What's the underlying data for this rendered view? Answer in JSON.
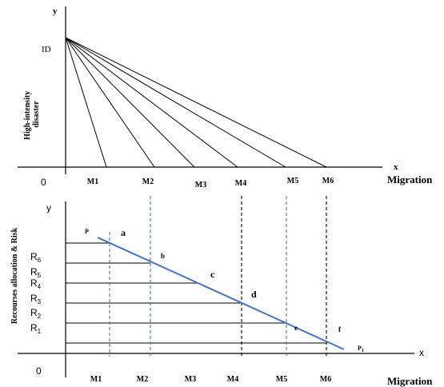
{
  "top_panel": {
    "y_axis_label": "y",
    "x_axis_label": "x",
    "origin_label": "0",
    "id_label": "ID",
    "y_title_line1": "High-intensity",
    "y_title_line2": "disaster",
    "x_title": "Migration",
    "ticks": [
      "M1",
      "M2",
      "M3",
      "M4",
      "M5",
      "M6"
    ]
  },
  "bottom_panel": {
    "y_axis_label": "y",
    "x_axis_label": "x",
    "origin_label": "0",
    "y_title": "Recourses allocation & Risk",
    "x_title": "Migration",
    "r_levels": [
      {
        "base": "R",
        "sub": "6"
      },
      {
        "base": "R",
        "sub": "5"
      },
      {
        "base": "R",
        "sub": "4"
      },
      {
        "base": "R",
        "sub": "3"
      },
      {
        "base": "R",
        "sub": "2"
      },
      {
        "base": "R",
        "sub": "1"
      }
    ],
    "line_start_label": "P",
    "line_end_label": {
      "base": "P",
      "sub": "1"
    },
    "point_labels": [
      "a",
      "b",
      "c",
      "d",
      "e",
      "f"
    ],
    "ticks": [
      "M1",
      "M2",
      "M3",
      "M4",
      "M5",
      "M6"
    ],
    "line_color": "#4472C4",
    "dashed_blue_color": "#4472C4",
    "dashed_black_color": "#000000"
  }
}
